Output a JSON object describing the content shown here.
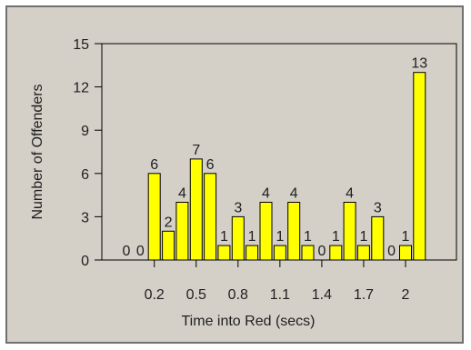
{
  "chart_data": {
    "type": "bar",
    "xlabel": "Time into Red (secs)",
    "ylabel": "Number of Offenders",
    "ylim": [
      0,
      15
    ],
    "yticks": [
      0,
      3,
      6,
      9,
      12,
      15
    ],
    "xtick_labels": [
      "0.2",
      "0.5",
      "0.8",
      "1.1",
      "1.4",
      "1.7",
      "2"
    ],
    "bar_color": "#ffff00",
    "plot_background": "#d4d0c8",
    "grid": false,
    "legend": "none",
    "categories": [
      "0.0",
      "0.1",
      "0.2",
      "0.3",
      "0.4",
      "0.5",
      "0.6",
      "0.7",
      "0.8",
      "0.9",
      "1.0",
      "1.1",
      "1.2",
      "1.3",
      "1.4",
      "1.5",
      "1.6",
      "1.7",
      "1.8",
      "1.9",
      "2.0",
      "2.1"
    ],
    "values": [
      0,
      0,
      6,
      2,
      4,
      7,
      6,
      1,
      3,
      1,
      4,
      1,
      4,
      1,
      0,
      1,
      4,
      1,
      3,
      0,
      1,
      13
    ]
  }
}
